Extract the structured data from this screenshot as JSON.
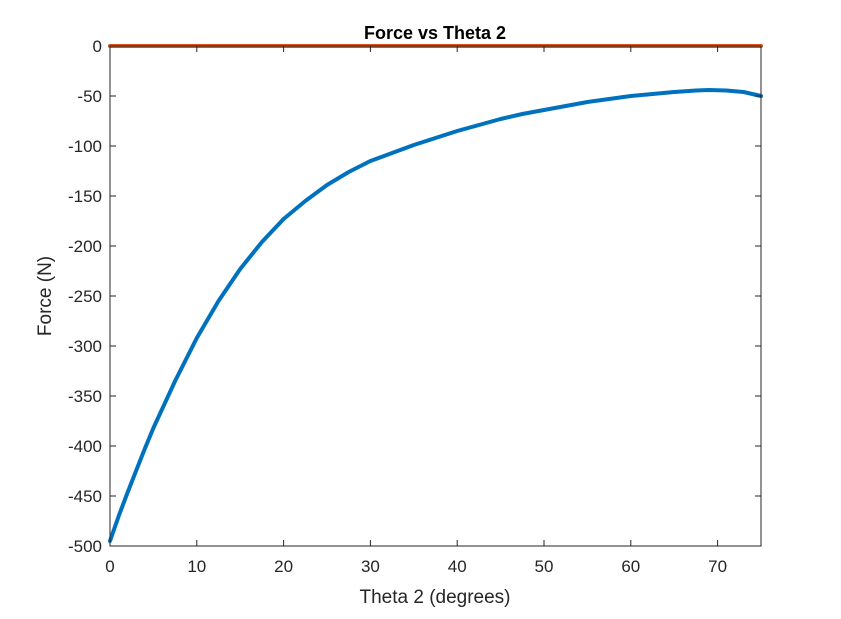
{
  "chart_data": {
    "type": "line",
    "title": "Force vs Theta 2",
    "xlabel": "Theta 2 (degrees)",
    "ylabel": "Force (N)",
    "xlim": [
      0,
      75
    ],
    "ylim": [
      -500,
      0
    ],
    "x_ticks": [
      0,
      10,
      20,
      30,
      40,
      50,
      60,
      70
    ],
    "y_ticks": [
      0,
      -50,
      -100,
      -150,
      -200,
      -250,
      -300,
      -350,
      -400,
      -450,
      -500
    ],
    "grid": false,
    "legend": "none",
    "series": [
      {
        "color": "#0072BD",
        "x": [
          0,
          1,
          2,
          3,
          4,
          5,
          7.5,
          10,
          12.5,
          15,
          17.5,
          20,
          22.5,
          25,
          27.5,
          30,
          32.5,
          35,
          37.5,
          40,
          42.5,
          45,
          47.5,
          50,
          52.5,
          55,
          57.5,
          60,
          62.5,
          65,
          67.5,
          69,
          71,
          73,
          75
        ],
        "y": [
          -495,
          -470,
          -447,
          -425,
          -403,
          -382,
          -335,
          -292,
          -255,
          -223,
          -196,
          -173,
          -155,
          -139,
          -126,
          -115,
          -107,
          -99,
          -92,
          -85,
          -79,
          -73,
          -68,
          -64,
          -60,
          -56,
          -53,
          -50,
          -48,
          -46,
          -44.5,
          -44,
          -44.5,
          -46,
          -50
        ]
      },
      {
        "color": "#D95319",
        "x": [
          0,
          75
        ],
        "y": [
          0,
          0
        ]
      }
    ]
  }
}
